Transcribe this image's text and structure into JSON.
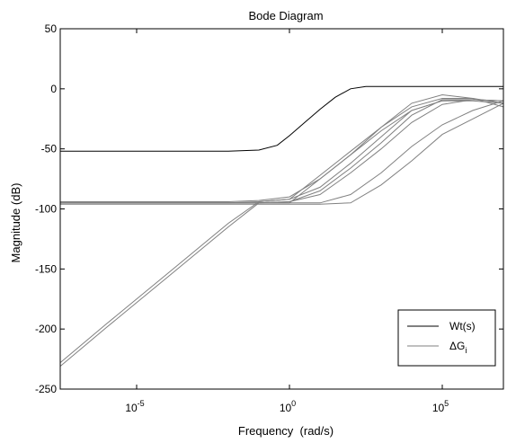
{
  "chart_data": {
    "type": "line",
    "title": "Bode Diagram",
    "xlabel": "Frequency  (rad/s)",
    "ylabel": "Magnitude (dB)",
    "xscale": "log",
    "xlim_log10": [
      -7.5,
      7.0
    ],
    "ylim": [
      -250,
      50
    ],
    "yticks": [
      50,
      0,
      -50,
      -100,
      -150,
      -200,
      -250
    ],
    "yticklabels": [
      "50",
      "0",
      "-50",
      "-100",
      "-150",
      "-200",
      "-250"
    ],
    "xticks_log10": [
      -5,
      0,
      5
    ],
    "xtick_base": "10",
    "xtick_exponents": [
      "-5",
      "0",
      "5"
    ],
    "grid": false,
    "legend_position": "bottom-right",
    "legend": {
      "entries": [
        {
          "text": "Wt(s)",
          "color": "#000000"
        },
        {
          "text": "ΔG",
          "subscript": "i",
          "color": "#808080"
        }
      ]
    },
    "series": [
      {
        "name": "Wt(s)",
        "color": "#000000",
        "x_log10": [
          -7.5,
          -2.0,
          -1.0,
          -0.4,
          0.0,
          0.5,
          1.0,
          1.5,
          2.0,
          2.5,
          3.0,
          4.0,
          5.0,
          6.0,
          7.0
        ],
        "y": [
          -52,
          -52,
          -51,
          -47,
          -39,
          -28,
          -17,
          -7,
          0,
          2,
          2,
          2,
          2,
          2,
          2
        ]
      },
      {
        "name": "",
        "color": "#808080",
        "x_log10": [
          -7.5,
          -6.0,
          -5.0,
          -4.0,
          -3.0,
          -2.0,
          -1.0,
          0.0,
          1.0,
          2.0,
          3.0,
          4.0,
          5.0,
          6.0,
          7.0
        ],
        "y": [
          -228,
          -196,
          -175,
          -154,
          -133,
          -112,
          -94,
          -92,
          -72,
          -52,
          -32,
          -15,
          -8,
          -8,
          -12
        ]
      },
      {
        "name": "",
        "color": "#808080",
        "x_log10": [
          -7.5,
          -6.0,
          -5.0,
          -4.0,
          -3.0,
          -2.0,
          -1.0,
          0.0,
          1.0,
          2.0,
          3.0,
          4.0,
          5.0,
          6.0,
          7.0
        ],
        "y": [
          -231,
          -199,
          -178,
          -157,
          -136,
          -115,
          -95,
          -95,
          -75,
          -55,
          -35,
          -18,
          -10,
          -9,
          -10
        ]
      },
      {
        "name": "",
        "color": "#808080",
        "x_log10": [
          -7.5,
          -2.0,
          -1.0,
          0.0,
          1.0,
          2.0,
          3.0,
          4.0,
          5.0,
          6.0,
          7.0
        ],
        "y": [
          -94,
          -94,
          -93,
          -90,
          -75,
          -55,
          -32,
          -12,
          -5,
          -8,
          -15
        ]
      },
      {
        "name": "",
        "color": "#808080",
        "x_log10": [
          -7.5,
          -2.0,
          -1.0,
          0.0,
          1.0,
          2.0,
          3.0,
          4.0,
          5.0,
          6.0,
          7.0
        ],
        "y": [
          -95,
          -95,
          -94,
          -92,
          -82,
          -62,
          -40,
          -18,
          -10,
          -10,
          -12
        ]
      },
      {
        "name": "",
        "color": "#808080",
        "x_log10": [
          -7.5,
          -2.0,
          -1.0,
          0.0,
          1.0,
          2.0,
          3.0,
          4.0,
          5.0,
          6.0,
          7.0
        ],
        "y": [
          -95,
          -95,
          -95,
          -94,
          -88,
          -70,
          -50,
          -28,
          -13,
          -9,
          -10
        ]
      },
      {
        "name": "",
        "color": "#808080",
        "x_log10": [
          -7.5,
          -2.0,
          -1.0,
          0.0,
          1.0,
          2.0,
          3.0,
          4.0,
          5.0,
          6.0,
          7.0
        ],
        "y": [
          -95,
          -95,
          -95,
          -95,
          -95,
          -88,
          -70,
          -48,
          -30,
          -18,
          -10
        ]
      },
      {
        "name": "",
        "color": "#808080",
        "x_log10": [
          -7.5,
          -2.0,
          -1.0,
          0.0,
          1.0,
          2.0,
          3.0,
          4.0,
          5.0,
          6.0,
          7.0
        ],
        "y": [
          -96,
          -96,
          -96,
          -96,
          -96,
          -95,
          -80,
          -60,
          -38,
          -25,
          -12
        ]
      },
      {
        "name": "",
        "color": "#808080",
        "x_log10": [
          -7.5,
          -2.0,
          -1.0,
          0.0,
          1.0,
          2.0,
          3.0,
          4.0,
          5.0,
          6.0,
          7.0
        ],
        "y": [
          -95,
          -95,
          -95,
          -94,
          -85,
          -66,
          -45,
          -22,
          -9,
          -9,
          -10
        ]
      }
    ]
  }
}
